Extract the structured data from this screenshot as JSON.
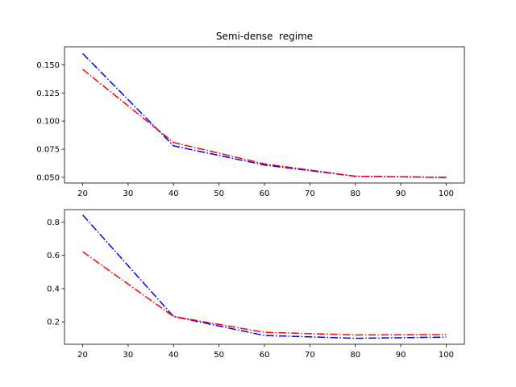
{
  "chart_data": [
    {
      "type": "line",
      "title": "Semi-dense  regime",
      "xlabel": "",
      "ylabel": "",
      "xlim": [
        16,
        104
      ],
      "ylim": [
        0.045,
        0.166
      ],
      "xticks": [
        20,
        30,
        40,
        50,
        60,
        70,
        80,
        90,
        100
      ],
      "yticks": [
        0.05,
        0.075,
        0.1,
        0.125,
        0.15
      ],
      "ytick_labels": [
        "0.050",
        "0.075",
        "0.100",
        "0.125",
        "0.150"
      ],
      "grid": false,
      "series": [
        {
          "color": "#0000ff",
          "linestyle": "dashdot",
          "x": [
            20,
            40,
            60,
            80,
            100
          ],
          "y": [
            0.16,
            0.078,
            0.061,
            0.051,
            0.05
          ]
        },
        {
          "color": "#ff0000",
          "linestyle": "dashdot",
          "x": [
            20,
            40,
            60,
            80,
            100
          ],
          "y": [
            0.146,
            0.081,
            0.062,
            0.051,
            0.05
          ]
        }
      ]
    },
    {
      "type": "line",
      "title": "",
      "xlabel": "",
      "ylabel": "",
      "xlim": [
        16,
        104
      ],
      "ylim": [
        0.065,
        0.875
      ],
      "xticks": [
        20,
        30,
        40,
        50,
        60,
        70,
        80,
        90,
        100
      ],
      "yticks": [
        0.2,
        0.4,
        0.6,
        0.8
      ],
      "ytick_labels": [
        "0.2",
        "0.4",
        "0.6",
        "0.8"
      ],
      "grid": false,
      "series": [
        {
          "color": "#0000ff",
          "linestyle": "dashdot",
          "x": [
            20,
            40,
            60,
            80,
            100
          ],
          "y": [
            0.843,
            0.232,
            0.118,
            0.101,
            0.108
          ]
        },
        {
          "color": "#ff0000",
          "linestyle": "dashdot",
          "x": [
            20,
            40,
            60,
            80,
            100
          ],
          "y": [
            0.622,
            0.232,
            0.137,
            0.121,
            0.123
          ]
        }
      ]
    }
  ]
}
